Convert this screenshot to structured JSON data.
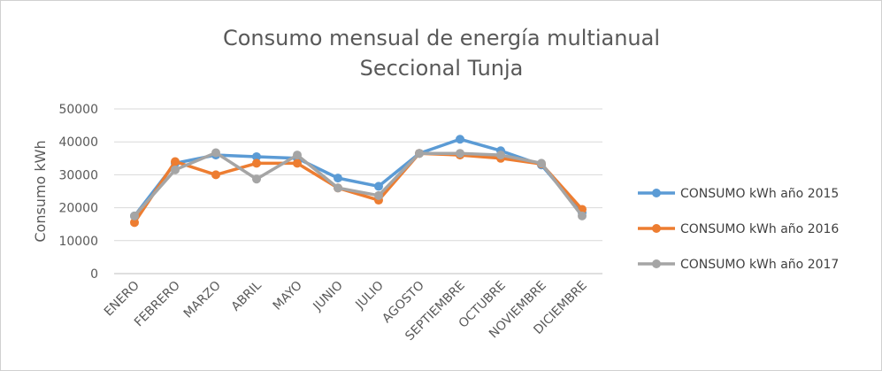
{
  "chart_data": {
    "type": "line",
    "title": [
      "Consumo mensual de energía multianual",
      "Seccional Tunja"
    ],
    "ylabel": "Consumo kWh",
    "xlabel": "",
    "ylim": [
      0,
      50000
    ],
    "yticks": [
      0,
      10000,
      20000,
      30000,
      40000,
      50000
    ],
    "grid": "horizontal",
    "legend_position": "right",
    "categories": [
      "ENERO",
      "FEBRERO",
      "MARZO",
      "ABRIL",
      "MAYO",
      "JUNIO",
      "JULIO",
      "AGOSTO",
      "SEPTIEMBRE",
      "OCTUBRE",
      "NOVIEMBRE",
      "DICIEMBRE"
    ],
    "series": [
      {
        "name": "CONSUMO kWh  año 2015",
        "color": "#5B9BD5",
        "values": [
          17500,
          33500,
          36000,
          35500,
          35000,
          29000,
          26500,
          36500,
          40800,
          37300,
          33000,
          18500
        ]
      },
      {
        "name": "CONSUMO kWh año 2016",
        "color": "#ED7D31",
        "values": [
          15500,
          34000,
          30000,
          33500,
          33500,
          26000,
          22300,
          36500,
          36000,
          35000,
          33300,
          19500
        ]
      },
      {
        "name": "CONSUMO kWh año 2017",
        "color": "#A5A5A5",
        "values": [
          17500,
          31500,
          36700,
          28700,
          36000,
          26000,
          23700,
          36500,
          36500,
          36000,
          33500,
          17500
        ]
      }
    ]
  }
}
